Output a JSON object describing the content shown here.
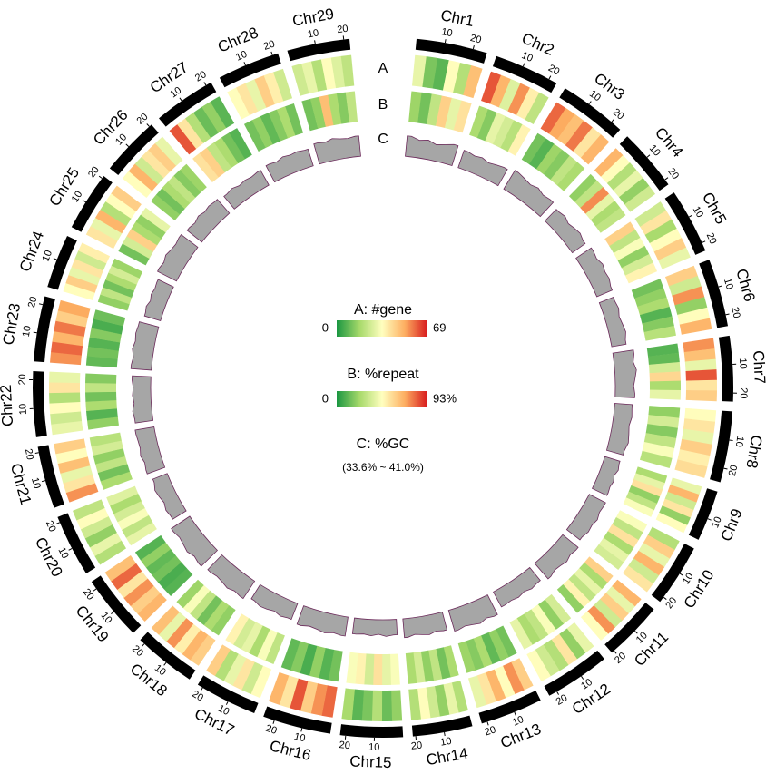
{
  "chart_data": {
    "type": "circos",
    "tracks": [
      "A",
      "B",
      "C"
    ],
    "ticks": [
      10,
      20
    ],
    "gene_lim": [
      0,
      69
    ],
    "repeat_lim": [
      0,
      93
    ],
    "gclim": [
      33.6,
      41.0
    ],
    "legend": {
      "gene_title": "A: #gene",
      "gene_min": 0,
      "gene_max": 69,
      "repeat_title": "B: %repeat",
      "repeat_min": 0,
      "repeat_max": {
        "value": 93,
        "label": "93%"
      },
      "gc_title": "C: %GC",
      "gc_range": "(33.6% ~ 41.0%)"
    },
    "chromosomes": [
      {
        "name": "Chr1",
        "length": 25,
        "gene": [
          30,
          12,
          8,
          35,
          20,
          48
        ],
        "repeat": [
          22,
          15,
          30,
          60,
          40,
          55
        ],
        "gc": [
          38.5,
          37.8,
          38.2,
          37.5,
          38.0,
          38.6
        ]
      },
      {
        "name": "Chr2",
        "length": 23,
        "gene": [
          62,
          50,
          28,
          55,
          38,
          22
        ],
        "repeat": [
          25,
          18,
          40,
          35,
          28,
          50
        ],
        "gc": [
          38.0,
          37.6,
          37.9,
          37.4,
          37.8,
          38.1
        ]
      },
      {
        "name": "Chr3",
        "length": 24,
        "gene": [
          60,
          52,
          48,
          58,
          40,
          50
        ],
        "repeat": [
          15,
          10,
          22,
          18,
          30,
          25
        ],
        "gc": [
          38.8,
          38.4,
          38.0,
          38.5,
          37.9,
          38.2
        ]
      },
      {
        "name": "Chr4",
        "length": 22,
        "gene": [
          50,
          35,
          20,
          30,
          15,
          25
        ],
        "repeat": [
          20,
          30,
          75,
          40,
          25,
          30
        ],
        "gc": [
          37.5,
          37.8,
          37.2,
          37.6,
          37.9,
          37.4
        ]
      },
      {
        "name": "Chr5",
        "length": 23,
        "gene": [
          25,
          40,
          18,
          35,
          45,
          30
        ],
        "repeat": [
          60,
          30,
          45,
          20,
          35,
          50
        ],
        "gc": [
          38.0,
          37.7,
          38.3,
          37.9,
          38.1,
          37.6
        ]
      },
      {
        "name": "Chr6",
        "length": 24,
        "gene": [
          45,
          25,
          55,
          15,
          35,
          50
        ],
        "repeat": [
          15,
          20,
          25,
          10,
          18,
          28
        ],
        "gc": [
          37.2,
          37.5,
          37.0,
          37.3,
          37.6,
          37.1
        ]
      },
      {
        "name": "Chr7",
        "length": 23,
        "gene": [
          55,
          48,
          30,
          62,
          40,
          45
        ],
        "repeat": [
          10,
          12,
          35,
          58,
          25,
          40
        ],
        "gc": [
          38.6,
          38.2,
          38.8,
          38.4,
          38.0,
          38.3
        ]
      },
      {
        "name": "Chr8",
        "length": 25,
        "gene": [
          35,
          40,
          30,
          45,
          38,
          42
        ],
        "repeat": [
          20,
          35,
          18,
          30,
          45,
          28
        ],
        "gc": [
          37.8,
          38.0,
          37.6,
          37.9,
          38.2,
          37.7
        ]
      },
      {
        "name": "Chr9",
        "length": 18,
        "gene": [
          30,
          50,
          25,
          40,
          15,
          35
        ],
        "repeat": [
          25,
          40,
          55,
          20,
          30,
          45
        ],
        "gc": [
          37.4,
          37.7,
          37.2,
          37.6,
          37.3,
          37.5
        ]
      },
      {
        "name": "Chr10",
        "length": 22,
        "gene": [
          20,
          45,
          30,
          50,
          25,
          40
        ],
        "repeat": [
          45,
          30,
          55,
          25,
          40,
          35
        ],
        "gc": [
          38.0,
          37.8,
          38.3,
          37.9,
          38.1,
          37.6
        ]
      },
      {
        "name": "Chr11",
        "length": 21,
        "gene": [
          50,
          30,
          45,
          25,
          55,
          35
        ],
        "repeat": [
          60,
          25,
          40,
          30,
          50,
          20
        ],
        "gc": [
          38.4,
          38.1,
          38.6,
          38.2,
          38.0,
          38.5
        ]
      },
      {
        "name": "Chr12",
        "length": 23,
        "gene": [
          30,
          15,
          40,
          20,
          25,
          35
        ],
        "repeat": [
          35,
          20,
          45,
          30,
          25,
          40
        ],
        "gc": [
          37.6,
          37.9,
          37.4,
          37.8,
          37.5,
          37.7
        ]
      },
      {
        "name": "Chr13",
        "length": 22,
        "gene": [
          45,
          55,
          35,
          50,
          40,
          30
        ],
        "repeat": [
          15,
          20,
          12,
          25,
          18,
          22
        ],
        "gc": [
          38.9,
          38.5,
          39.1,
          38.7,
          38.4,
          38.8
        ]
      },
      {
        "name": "Chr14",
        "length": 21,
        "gene": [
          20,
          30,
          15,
          25,
          35,
          20
        ],
        "repeat": [
          25,
          15,
          30,
          20,
          35,
          25
        ],
        "gc": [
          38.0,
          37.7,
          38.2,
          37.9,
          37.6,
          38.1
        ]
      },
      {
        "name": "Chr15",
        "length": 22,
        "gene": [
          15,
          10,
          20,
          12,
          8,
          18
        ],
        "repeat": [
          45,
          40,
          55,
          35,
          50,
          45
        ],
        "gc": [
          37.3,
          37.6,
          37.1,
          37.5,
          37.2,
          37.4
        ]
      },
      {
        "name": "Chr16",
        "length": 24,
        "gene": [
          60,
          55,
          45,
          62,
          40,
          50
        ],
        "repeat": [
          15,
          10,
          20,
          8,
          18,
          12
        ],
        "gc": [
          38.2,
          37.9,
          38.4,
          38.0,
          37.8,
          38.3
        ]
      },
      {
        "name": "Chr17",
        "length": 22,
        "gene": [
          35,
          25,
          40,
          30,
          20,
          45
        ],
        "repeat": [
          30,
          45,
          25,
          40,
          35,
          50
        ],
        "gc": [
          37.7,
          38.0,
          37.5,
          37.9,
          38.1,
          37.6
        ]
      },
      {
        "name": "Chr18",
        "length": 22,
        "gene": [
          45,
          50,
          38,
          55,
          30,
          48
        ],
        "repeat": [
          20,
          25,
          15,
          30,
          45,
          22
        ],
        "gc": [
          38.6,
          38.3,
          38.8,
          38.4,
          38.2,
          38.5
        ]
      },
      {
        "name": "Chr19",
        "length": 23,
        "gene": [
          50,
          45,
          55,
          40,
          60,
          48
        ],
        "repeat": [
          10,
          8,
          15,
          12,
          20,
          10
        ],
        "gc": [
          39.0,
          38.6,
          39.2,
          38.8,
          38.5,
          38.9
        ]
      },
      {
        "name": "Chr20",
        "length": 22,
        "gene": [
          20,
          30,
          15,
          25,
          35,
          22
        ],
        "repeat": [
          40,
          30,
          45,
          35,
          25,
          38
        ],
        "gc": [
          37.4,
          37.7,
          37.2,
          37.6,
          37.9,
          37.3
        ]
      },
      {
        "name": "Chr21",
        "length": 22,
        "gene": [
          55,
          40,
          30,
          48,
          35,
          45
        ],
        "repeat": [
          25,
          15,
          30,
          20,
          35,
          28
        ],
        "gc": [
          38.1,
          37.8,
          38.3,
          37.9,
          38.0,
          38.2
        ]
      },
      {
        "name": "Chr22",
        "length": 23,
        "gene": [
          30,
          25,
          35,
          20,
          40,
          30
        ],
        "repeat": [
          20,
          10,
          25,
          15,
          30,
          18
        ],
        "gc": [
          37.9,
          38.2,
          37.7,
          38.0,
          37.8,
          38.1
        ]
      },
      {
        "name": "Chr23",
        "length": 23,
        "gene": [
          55,
          60,
          50,
          58,
          45,
          52
        ],
        "repeat": [
          12,
          15,
          10,
          18,
          8,
          14
        ],
        "gc": [
          38.5,
          38.2,
          38.7,
          38.3,
          38.6,
          38.4
        ]
      },
      {
        "name": "Chr24",
        "length": 19,
        "gene": [
          35,
          45,
          30,
          40,
          25,
          38
        ],
        "repeat": [
          20,
          30,
          15,
          25,
          35,
          22
        ],
        "gc": [
          37.6,
          37.9,
          37.4,
          37.8,
          37.5,
          37.7
        ]
      },
      {
        "name": "Chr25",
        "length": 21,
        "gene": [
          40,
          30,
          50,
          20,
          35,
          45
        ],
        "repeat": [
          15,
          35,
          60,
          25,
          20,
          40
        ],
        "gc": [
          38.7,
          38.4,
          38.9,
          38.5,
          38.3,
          38.6
        ]
      },
      {
        "name": "Chr26",
        "length": 21,
        "gene": [
          35,
          50,
          25,
          40,
          45,
          30
        ],
        "repeat": [
          20,
          15,
          25,
          30,
          18,
          22
        ],
        "gc": [
          38.1,
          37.8,
          38.3,
          37.9,
          38.2,
          38.0
        ]
      },
      {
        "name": "Chr27",
        "length": 22,
        "gene": [
          62,
          40,
          20,
          10,
          15,
          8
        ],
        "repeat": [
          55,
          60,
          30,
          25,
          15,
          10
        ],
        "gc": [
          37.5,
          37.8,
          37.3,
          37.6,
          37.4,
          37.7
        ]
      },
      {
        "name": "Chr28",
        "length": 22,
        "gene": [
          35,
          40,
          30,
          45,
          38,
          25
        ],
        "repeat": [
          15,
          20,
          12,
          18,
          25,
          15
        ],
        "gc": [
          38.0,
          37.7,
          38.2,
          37.9,
          38.1,
          37.8
        ]
      },
      {
        "name": "Chr29",
        "length": 22,
        "gene": [
          25,
          30,
          20,
          35,
          28,
          22
        ],
        "repeat": [
          15,
          20,
          65,
          25,
          18,
          30
        ],
        "gc": [
          38.6,
          38.3,
          38.8,
          38.4,
          38.2,
          38.5
        ]
      }
    ]
  }
}
